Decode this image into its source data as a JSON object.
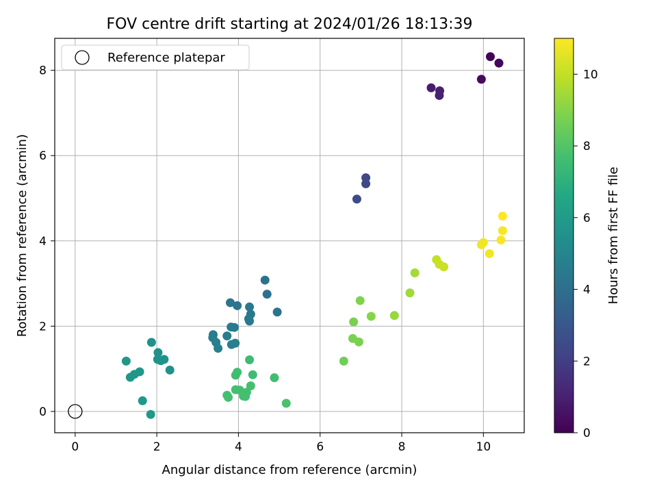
{
  "chart_data": {
    "type": "scatter",
    "title": "FOV centre drift starting at 2024/01/26 18:13:39",
    "xlabel": "Angular distance from reference (arcmin)",
    "ylabel": "Rotation from reference (arcmin)",
    "xlim": [
      -0.5,
      11.0
    ],
    "ylim": [
      -0.5,
      8.75
    ],
    "x_ticks": [
      0,
      2,
      4,
      6,
      8,
      10
    ],
    "y_ticks": [
      0,
      2,
      4,
      6,
      8
    ],
    "grid": true,
    "legend": {
      "placement": "top-left",
      "entries": [
        "Reference platepar"
      ]
    },
    "reference_point": {
      "x": 0.0,
      "y": 0.0,
      "label": "Reference platepar"
    },
    "colorbar": {
      "label": "Hours from first FF file",
      "range": [
        0,
        11
      ],
      "ticks": [
        0,
        2,
        4,
        6,
        8,
        10
      ],
      "colormap": "viridis"
    },
    "points": [
      {
        "x": 10.17,
        "y": 8.32,
        "h": 0.1
      },
      {
        "x": 10.38,
        "y": 8.17,
        "h": 0.2
      },
      {
        "x": 9.95,
        "y": 7.79,
        "h": 0.3
      },
      {
        "x": 8.72,
        "y": 7.59,
        "h": 0.9
      },
      {
        "x": 8.93,
        "y": 7.52,
        "h": 1.0
      },
      {
        "x": 8.92,
        "y": 7.41,
        "h": 1.0
      },
      {
        "x": 7.12,
        "y": 5.48,
        "h": 2.4
      },
      {
        "x": 7.12,
        "y": 5.34,
        "h": 2.4
      },
      {
        "x": 6.9,
        "y": 4.98,
        "h": 2.5
      },
      {
        "x": 4.65,
        "y": 3.08,
        "h": 4.1
      },
      {
        "x": 4.7,
        "y": 2.75,
        "h": 4.1
      },
      {
        "x": 4.95,
        "y": 2.33,
        "h": 4.2
      },
      {
        "x": 3.8,
        "y": 2.55,
        "h": 4.3
      },
      {
        "x": 3.97,
        "y": 2.48,
        "h": 4.3
      },
      {
        "x": 4.27,
        "y": 2.45,
        "h": 4.4
      },
      {
        "x": 4.3,
        "y": 2.28,
        "h": 4.4
      },
      {
        "x": 4.25,
        "y": 2.17,
        "h": 4.4
      },
      {
        "x": 4.27,
        "y": 2.12,
        "h": 4.4
      },
      {
        "x": 3.82,
        "y": 1.98,
        "h": 4.5
      },
      {
        "x": 3.9,
        "y": 1.97,
        "h": 4.5
      },
      {
        "x": 3.72,
        "y": 1.77,
        "h": 4.6
      },
      {
        "x": 3.38,
        "y": 1.8,
        "h": 4.6
      },
      {
        "x": 3.37,
        "y": 1.73,
        "h": 4.6
      },
      {
        "x": 3.45,
        "y": 1.62,
        "h": 4.7
      },
      {
        "x": 3.83,
        "y": 1.57,
        "h": 4.7
      },
      {
        "x": 3.92,
        "y": 1.6,
        "h": 4.7
      },
      {
        "x": 3.5,
        "y": 1.48,
        "h": 4.7
      },
      {
        "x": 1.87,
        "y": 1.62,
        "h": 5.5
      },
      {
        "x": 2.03,
        "y": 1.38,
        "h": 5.5
      },
      {
        "x": 2.02,
        "y": 1.22,
        "h": 5.5
      },
      {
        "x": 2.1,
        "y": 1.19,
        "h": 5.5
      },
      {
        "x": 2.18,
        "y": 1.22,
        "h": 5.5
      },
      {
        "x": 2.32,
        "y": 0.97,
        "h": 5.5
      },
      {
        "x": 1.25,
        "y": 1.18,
        "h": 5.8
      },
      {
        "x": 1.58,
        "y": 0.93,
        "h": 5.8
      },
      {
        "x": 1.45,
        "y": 0.87,
        "h": 5.8
      },
      {
        "x": 1.35,
        "y": 0.8,
        "h": 5.8
      },
      {
        "x": 1.65,
        "y": 0.25,
        "h": 5.9
      },
      {
        "x": 1.85,
        "y": -0.07,
        "h": 5.9
      },
      {
        "x": 4.27,
        "y": 1.21,
        "h": 7.5
      },
      {
        "x": 4.35,
        "y": 0.86,
        "h": 7.5
      },
      {
        "x": 3.97,
        "y": 0.92,
        "h": 7.6
      },
      {
        "x": 3.93,
        "y": 0.85,
        "h": 7.6
      },
      {
        "x": 4.88,
        "y": 0.79,
        "h": 7.6
      },
      {
        "x": 4.3,
        "y": 0.6,
        "h": 7.7
      },
      {
        "x": 3.93,
        "y": 0.51,
        "h": 7.7
      },
      {
        "x": 4.03,
        "y": 0.5,
        "h": 7.7
      },
      {
        "x": 4.2,
        "y": 0.45,
        "h": 7.7
      },
      {
        "x": 4.12,
        "y": 0.36,
        "h": 7.7
      },
      {
        "x": 4.17,
        "y": 0.35,
        "h": 7.7
      },
      {
        "x": 3.72,
        "y": 0.38,
        "h": 7.7
      },
      {
        "x": 3.75,
        "y": 0.33,
        "h": 7.7
      },
      {
        "x": 5.17,
        "y": 0.19,
        "h": 7.8
      },
      {
        "x": 6.58,
        "y": 1.18,
        "h": 8.6
      },
      {
        "x": 6.8,
        "y": 1.71,
        "h": 8.8
      },
      {
        "x": 6.95,
        "y": 1.63,
        "h": 8.8
      },
      {
        "x": 6.82,
        "y": 2.1,
        "h": 8.8
      },
      {
        "x": 6.98,
        "y": 2.6,
        "h": 8.9
      },
      {
        "x": 7.25,
        "y": 2.23,
        "h": 9.0
      },
      {
        "x": 7.82,
        "y": 2.25,
        "h": 9.3
      },
      {
        "x": 8.2,
        "y": 2.78,
        "h": 9.4
      },
      {
        "x": 8.32,
        "y": 3.25,
        "h": 9.5
      },
      {
        "x": 8.85,
        "y": 3.56,
        "h": 10.0
      },
      {
        "x": 8.92,
        "y": 3.45,
        "h": 10.1
      },
      {
        "x": 9.03,
        "y": 3.39,
        "h": 10.1
      },
      {
        "x": 9.95,
        "y": 3.91,
        "h": 10.8
      },
      {
        "x": 10.0,
        "y": 3.96,
        "h": 10.8
      },
      {
        "x": 10.15,
        "y": 3.7,
        "h": 10.8
      },
      {
        "x": 10.43,
        "y": 4.02,
        "h": 10.9
      },
      {
        "x": 10.47,
        "y": 4.24,
        "h": 10.9
      },
      {
        "x": 10.47,
        "y": 4.58,
        "h": 11.0
      }
    ]
  }
}
